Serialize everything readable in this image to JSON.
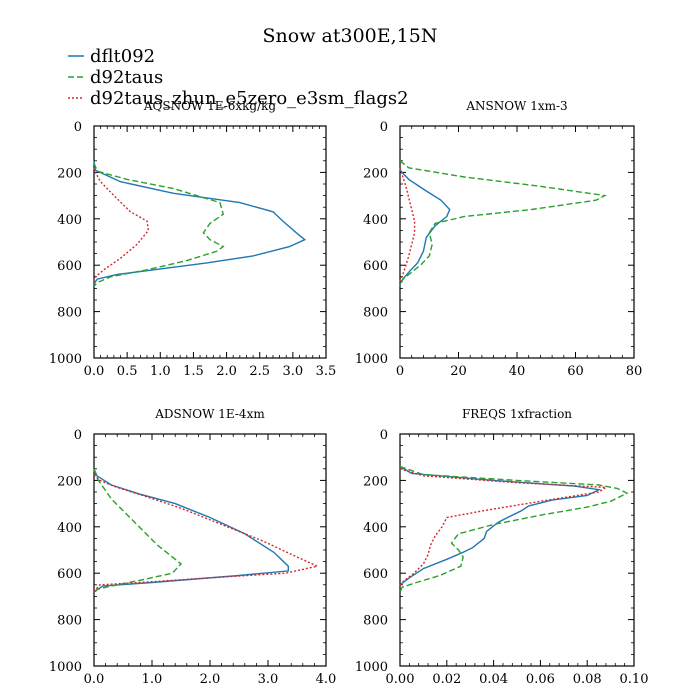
{
  "title": "Snow at300E,15N",
  "colors": {
    "series1": "#1f77b4",
    "series2": "#2ca02c",
    "series3": "#d62728"
  },
  "legend": [
    {
      "name": "dflt092",
      "style": "solid"
    },
    {
      "name": "d92taus",
      "style": "dash"
    },
    {
      "name": "d92taus_zhun_e5zero_e3sm_flags2",
      "style": "dot"
    }
  ],
  "chart_data": [
    {
      "type": "line",
      "title": "AQSNOW  1E-6xkg/kg",
      "xlim": [
        0,
        3.5
      ],
      "xticks": [
        "0.0",
        "0.5",
        "1.0",
        "1.5",
        "2.0",
        "2.5",
        "3.0",
        "3.5"
      ],
      "ylim": [
        1000,
        0
      ],
      "yticks": [
        "0",
        "200",
        "400",
        "600",
        "800",
        "1000"
      ],
      "series": [
        {
          "name": "dflt092",
          "points": [
            [
              0,
              150
            ],
            [
              0.02,
              190
            ],
            [
              0.4,
              240
            ],
            [
              1.2,
              290
            ],
            [
              2.2,
              330
            ],
            [
              2.7,
              370
            ],
            [
              2.85,
              410
            ],
            [
              3.05,
              460
            ],
            [
              3.18,
              490
            ],
            [
              2.95,
              520
            ],
            [
              2.4,
              560
            ],
            [
              1.7,
              590
            ],
            [
              0.9,
              620
            ],
            [
              0.35,
              640
            ],
            [
              0.05,
              660
            ],
            [
              0,
              680
            ]
          ]
        },
        {
          "name": "d92taus",
          "points": [
            [
              0,
              160
            ],
            [
              0.05,
              195
            ],
            [
              0.5,
              230
            ],
            [
              1.2,
              270
            ],
            [
              1.9,
              330
            ],
            [
              1.95,
              380
            ],
            [
              1.75,
              420
            ],
            [
              1.65,
              460
            ],
            [
              1.75,
              490
            ],
            [
              1.95,
              520
            ],
            [
              1.85,
              540
            ],
            [
              1.4,
              580
            ],
            [
              0.8,
              620
            ],
            [
              0.25,
              650
            ],
            [
              0.05,
              675
            ],
            [
              0,
              690
            ]
          ]
        },
        {
          "name": "d92taus_zhun_e5zero_e3sm_flags2",
          "points": [
            [
              0,
              180
            ],
            [
              0.02,
              200
            ],
            [
              0.1,
              240
            ],
            [
              0.3,
              300
            ],
            [
              0.55,
              370
            ],
            [
              0.8,
              410
            ],
            [
              0.82,
              450
            ],
            [
              0.65,
              510
            ],
            [
              0.4,
              570
            ],
            [
              0.15,
              620
            ],
            [
              0.02,
              650
            ],
            [
              0,
              670
            ]
          ]
        }
      ]
    },
    {
      "type": "line",
      "title": "ANSNOW  1xm-3",
      "xlim": [
        0,
        80
      ],
      "xticks": [
        "0",
        "20",
        "40",
        "60",
        "80"
      ],
      "ylim": [
        1000,
        0
      ],
      "yticks": [
        "0",
        "200",
        "400",
        "600",
        "800",
        "1000"
      ],
      "series": [
        {
          "name": "dflt092",
          "points": [
            [
              0,
              190
            ],
            [
              3,
              230
            ],
            [
              9,
              280
            ],
            [
              14,
              320
            ],
            [
              17,
              360
            ],
            [
              16,
              390
            ],
            [
              12,
              430
            ],
            [
              9,
              480
            ],
            [
              8,
              540
            ],
            [
              6,
              590
            ],
            [
              3,
              630
            ],
            [
              1,
              660
            ],
            [
              0,
              680
            ]
          ]
        },
        {
          "name": "d92taus",
          "points": [
            [
              0,
              150
            ],
            [
              3,
              180
            ],
            [
              22,
              220
            ],
            [
              48,
              260
            ],
            [
              70,
              300
            ],
            [
              67,
              320
            ],
            [
              45,
              360
            ],
            [
              22,
              390
            ],
            [
              12,
              420
            ],
            [
              10,
              460
            ],
            [
              11,
              510
            ],
            [
              10,
              560
            ],
            [
              7,
              600
            ],
            [
              4,
              630
            ],
            [
              1,
              660
            ],
            [
              0,
              690
            ]
          ]
        },
        {
          "name": "d92taus_zhun_e5zero_e3sm_flags2",
          "points": [
            [
              0,
              180
            ],
            [
              1,
              220
            ],
            [
              2,
              260
            ],
            [
              3,
              310
            ],
            [
              4,
              360
            ],
            [
              5,
              410
            ],
            [
              5,
              460
            ],
            [
              4,
              510
            ],
            [
              3,
              560
            ],
            [
              2,
              600
            ],
            [
              1,
              640
            ],
            [
              0,
              670
            ]
          ]
        }
      ]
    },
    {
      "type": "line",
      "title": "ADSNOW  1E-4xm",
      "xlim": [
        0,
        4.0
      ],
      "xticks": [
        "0.0",
        "1.0",
        "2.0",
        "3.0",
        "4.0"
      ],
      "ylim": [
        1000,
        0
      ],
      "yticks": [
        "0",
        "200",
        "400",
        "600",
        "800",
        "1000"
      ],
      "series": [
        {
          "name": "dflt092",
          "points": [
            [
              0,
              150
            ],
            [
              0.05,
              180
            ],
            [
              0.3,
              220
            ],
            [
              0.8,
              260
            ],
            [
              1.4,
              300
            ],
            [
              2.0,
              360
            ],
            [
              2.6,
              430
            ],
            [
              3.1,
              510
            ],
            [
              3.35,
              570
            ],
            [
              3.35,
              590
            ],
            [
              2.5,
              610
            ],
            [
              1.0,
              640
            ],
            [
              0.15,
              655
            ],
            [
              0,
              680
            ]
          ]
        },
        {
          "name": "d92taus",
          "points": [
            [
              0,
              155
            ],
            [
              0.05,
              190
            ],
            [
              0.3,
              280
            ],
            [
              0.7,
              380
            ],
            [
              1.1,
              480
            ],
            [
              1.5,
              560
            ],
            [
              1.35,
              600
            ],
            [
              0.8,
              630
            ],
            [
              0.3,
              655
            ],
            [
              0.05,
              670
            ],
            [
              0,
              690
            ]
          ]
        },
        {
          "name": "d92taus_zhun_e5zero_e3sm_flags2",
          "points": [
            [
              0,
              175
            ],
            [
              0.1,
              200
            ],
            [
              0.4,
              230
            ],
            [
              0.9,
              270
            ],
            [
              1.5,
              320
            ],
            [
              2.2,
              390
            ],
            [
              2.9,
              460
            ],
            [
              3.5,
              530
            ],
            [
              3.85,
              570
            ],
            [
              3.3,
              600
            ],
            [
              2.0,
              620
            ],
            [
              0.8,
              640
            ],
            [
              0.1,
              650
            ],
            [
              0,
              680
            ]
          ]
        }
      ]
    },
    {
      "type": "line",
      "title": "FREQS  1xfraction",
      "xlim": [
        0,
        0.1
      ],
      "xticks": [
        "0.00",
        "0.02",
        "0.04",
        "0.06",
        "0.08",
        "0.10"
      ],
      "ylim": [
        1000,
        0
      ],
      "yticks": [
        "0",
        "200",
        "400",
        "600",
        "800",
        "1000"
      ],
      "series": [
        {
          "name": "dflt092",
          "points": [
            [
              0,
              140
            ],
            [
              0.005,
              170
            ],
            [
              0.04,
              200
            ],
            [
              0.075,
              225
            ],
            [
              0.085,
              240
            ],
            [
              0.08,
              265
            ],
            [
              0.065,
              285
            ],
            [
              0.055,
              310
            ],
            [
              0.052,
              330
            ],
            [
              0.046,
              360
            ],
            [
              0.042,
              380
            ],
            [
              0.037,
              420
            ],
            [
              0.036,
              450
            ],
            [
              0.031,
              490
            ],
            [
              0.027,
              510
            ],
            [
              0.02,
              540
            ],
            [
              0.01,
              580
            ],
            [
              0.004,
              620
            ],
            [
              0,
              650
            ]
          ]
        },
        {
          "name": "d92taus",
          "points": [
            [
              0,
              140
            ],
            [
              0.01,
              175
            ],
            [
              0.05,
              200
            ],
            [
              0.085,
              220
            ],
            [
              0.093,
              235
            ],
            [
              0.097,
              255
            ],
            [
              0.09,
              290
            ],
            [
              0.08,
              315
            ],
            [
              0.06,
              350
            ],
            [
              0.04,
              390
            ],
            [
              0.025,
              430
            ],
            [
              0.022,
              470
            ],
            [
              0.025,
              500
            ],
            [
              0.027,
              530
            ],
            [
              0.026,
              570
            ],
            [
              0.017,
              610
            ],
            [
              0.007,
              640
            ],
            [
              0.001,
              660
            ],
            [
              0,
              680
            ]
          ]
        },
        {
          "name": "d92taus_zhun_e5zero_e3sm_flags2",
          "points": [
            [
              0,
              150
            ],
            [
              0.01,
              180
            ],
            [
              0.05,
              210
            ],
            [
              0.088,
              230
            ],
            [
              0.085,
              250
            ],
            [
              0.06,
              290
            ],
            [
              0.036,
              330
            ],
            [
              0.02,
              360
            ],
            [
              0.018,
              400
            ],
            [
              0.015,
              440
            ],
            [
              0.013,
              480
            ],
            [
              0.012,
              520
            ],
            [
              0.01,
              560
            ],
            [
              0.006,
              600
            ],
            [
              0.002,
              630
            ],
            [
              0,
              650
            ]
          ]
        }
      ]
    }
  ]
}
